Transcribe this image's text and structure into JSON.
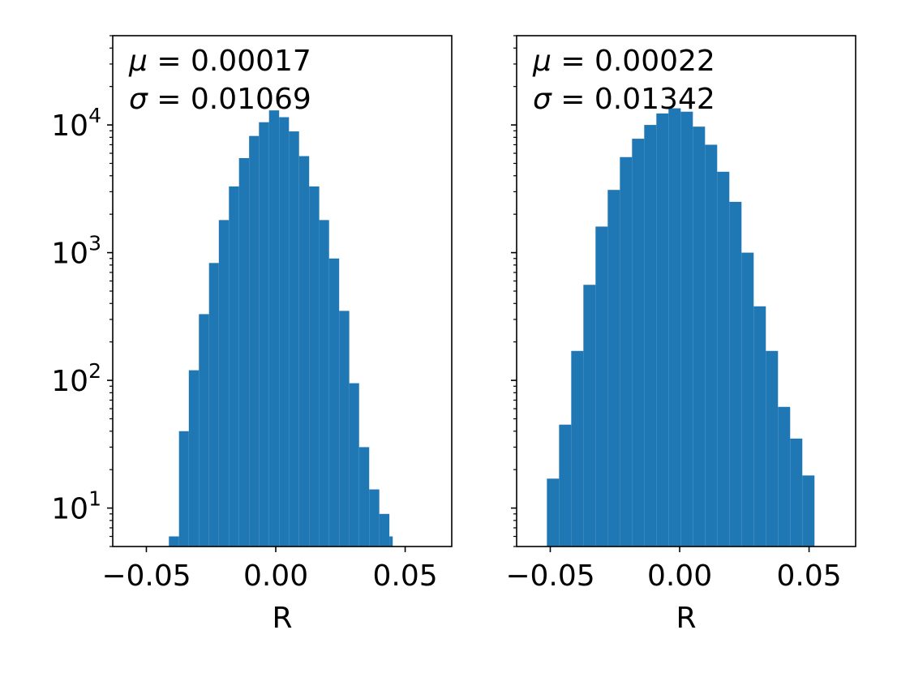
{
  "chart_data": [
    {
      "type": "bar",
      "xlabel": "R",
      "ylabel": "",
      "yscale": "log",
      "xlim": [
        -0.063,
        0.068
      ],
      "ylim": [
        5,
        50000
      ],
      "xticks": [
        "−0.05",
        "0.00",
        "0.05"
      ],
      "xtick_values": [
        -0.05,
        0.0,
        0.05
      ],
      "yticks": [
        {
          "base": "10",
          "exp": "1",
          "value": 10
        },
        {
          "base": "10",
          "exp": "2",
          "value": 100
        },
        {
          "base": "10",
          "exp": "3",
          "value": 1000
        },
        {
          "base": "10",
          "exp": "4",
          "value": 10000
        }
      ],
      "annotation": {
        "mu_symbol": "μ",
        "mu_value": "= 0.00017",
        "sigma_symbol": "σ",
        "sigma_value": "= 0.01069"
      },
      "bar_color": "#1f77b4",
      "bins": [
        {
          "x0": -0.0413,
          "x1": -0.0374,
          "count": 6
        },
        {
          "x0": -0.0374,
          "x1": -0.0336,
          "count": 40
        },
        {
          "x0": -0.0336,
          "x1": -0.0297,
          "count": 120
        },
        {
          "x0": -0.0297,
          "x1": -0.0258,
          "count": 330
        },
        {
          "x0": -0.0258,
          "x1": -0.022,
          "count": 830
        },
        {
          "x0": -0.022,
          "x1": -0.0181,
          "count": 1800
        },
        {
          "x0": -0.0181,
          "x1": -0.0142,
          "count": 3300
        },
        {
          "x0": -0.0142,
          "x1": -0.0103,
          "count": 5500
        },
        {
          "x0": -0.0103,
          "x1": -0.0065,
          "count": 8200
        },
        {
          "x0": -0.0065,
          "x1": -0.0026,
          "count": 10500
        },
        {
          "x0": -0.0026,
          "x1": 0.0013,
          "count": 13000
        },
        {
          "x0": 0.0013,
          "x1": 0.0051,
          "count": 11500
        },
        {
          "x0": 0.0051,
          "x1": 0.009,
          "count": 8900
        },
        {
          "x0": 0.009,
          "x1": 0.0129,
          "count": 5700
        },
        {
          "x0": 0.0129,
          "x1": 0.0168,
          "count": 3300
        },
        {
          "x0": 0.0168,
          "x1": 0.0206,
          "count": 1800
        },
        {
          "x0": 0.0206,
          "x1": 0.0245,
          "count": 900
        },
        {
          "x0": 0.0245,
          "x1": 0.0284,
          "count": 350
        },
        {
          "x0": 0.0284,
          "x1": 0.0322,
          "count": 95
        },
        {
          "x0": 0.0322,
          "x1": 0.0361,
          "count": 30
        },
        {
          "x0": 0.0361,
          "x1": 0.04,
          "count": 14
        },
        {
          "x0": 0.04,
          "x1": 0.0439,
          "count": 9
        },
        {
          "x0": 0.0439,
          "x1": 0.0452,
          "count": 6
        }
      ]
    },
    {
      "type": "bar",
      "xlabel": "R",
      "ylabel": "",
      "yscale": "log",
      "xlim": [
        -0.063,
        0.068
      ],
      "ylim": [
        5,
        50000
      ],
      "xticks": [
        "−0.05",
        "0.00",
        "0.05"
      ],
      "xtick_values": [
        -0.05,
        0.0,
        0.05
      ],
      "annotation": {
        "mu_symbol": "μ",
        "mu_value": "= 0.00022",
        "sigma_symbol": "σ",
        "sigma_value": "= 0.01342"
      },
      "bar_color": "#1f77b4",
      "bins": [
        {
          "x0": -0.0513,
          "x1": -0.0466,
          "count": 17
        },
        {
          "x0": -0.0466,
          "x1": -0.0419,
          "count": 45
        },
        {
          "x0": -0.0419,
          "x1": -0.0372,
          "count": 170
        },
        {
          "x0": -0.0372,
          "x1": -0.0325,
          "count": 560
        },
        {
          "x0": -0.0325,
          "x1": -0.0278,
          "count": 1600
        },
        {
          "x0": -0.0278,
          "x1": -0.0231,
          "count": 3100
        },
        {
          "x0": -0.0231,
          "x1": -0.0184,
          "count": 5600
        },
        {
          "x0": -0.0184,
          "x1": -0.0137,
          "count": 7800
        },
        {
          "x0": -0.0137,
          "x1": -0.009,
          "count": 10000
        },
        {
          "x0": -0.009,
          "x1": -0.0043,
          "count": 12300
        },
        {
          "x0": -0.0043,
          "x1": 0.0004,
          "count": 13500
        },
        {
          "x0": 0.0004,
          "x1": 0.0051,
          "count": 12700
        },
        {
          "x0": 0.0051,
          "x1": 0.0098,
          "count": 9700
        },
        {
          "x0": 0.0098,
          "x1": 0.0145,
          "count": 7000
        },
        {
          "x0": 0.0145,
          "x1": 0.0192,
          "count": 4300
        },
        {
          "x0": 0.0192,
          "x1": 0.0239,
          "count": 2500
        },
        {
          "x0": 0.0239,
          "x1": 0.0286,
          "count": 1000
        },
        {
          "x0": 0.0286,
          "x1": 0.0333,
          "count": 380
        },
        {
          "x0": 0.0333,
          "x1": 0.038,
          "count": 170
        },
        {
          "x0": 0.038,
          "x1": 0.0427,
          "count": 62
        },
        {
          "x0": 0.0427,
          "x1": 0.0474,
          "count": 35
        },
        {
          "x0": 0.0474,
          "x1": 0.0521,
          "count": 18
        }
      ]
    }
  ]
}
